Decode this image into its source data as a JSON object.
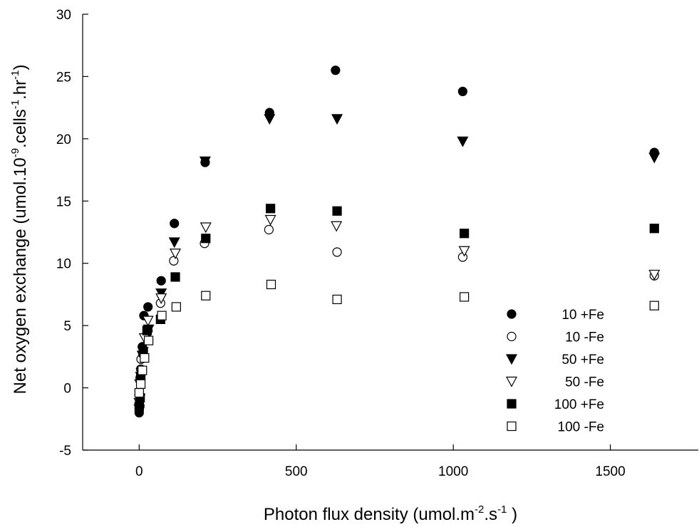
{
  "chart_data": {
    "type": "scatter",
    "xlabel": "Photon flux density (umol.m-2.s-1 )",
    "ylabel": "Net oxygen exchange (umol.10-9.cells-1.hr-1)",
    "xlim": [
      -180,
      1780
    ],
    "ylim": [
      -5,
      30
    ],
    "x_ticks": [
      0,
      500,
      1000,
      1500
    ],
    "y_ticks": [
      -5,
      0,
      5,
      10,
      15,
      20,
      25,
      30
    ],
    "grid": false,
    "legend_position": "bottom-right",
    "series": [
      {
        "name": "10 +Fe",
        "marker": "filled-circle",
        "color": "#000000",
        "points": [
          [
            0,
            -2.0
          ],
          [
            2,
            -1.5
          ],
          [
            5,
            1.5
          ],
          [
            10,
            3.3
          ],
          [
            15,
            5.8
          ],
          [
            28,
            6.5
          ],
          [
            70,
            8.6
          ],
          [
            112,
            13.2
          ],
          [
            210,
            18.1
          ],
          [
            415,
            22.1
          ],
          [
            625,
            25.5
          ],
          [
            1030,
            23.8
          ],
          [
            1640,
            18.9
          ]
        ]
      },
      {
        "name": "10 -Fe",
        "marker": "open-circle",
        "color": "#000000",
        "points": [
          [
            0,
            -1.3
          ],
          [
            3,
            0.8
          ],
          [
            6,
            2.3
          ],
          [
            12,
            2.7
          ],
          [
            22,
            4.2
          ],
          [
            28,
            4.6
          ],
          [
            68,
            6.8
          ],
          [
            110,
            10.2
          ],
          [
            208,
            11.6
          ],
          [
            413,
            12.7
          ],
          [
            630,
            10.9
          ],
          [
            1030,
            10.5
          ],
          [
            1640,
            9.0
          ]
        ]
      },
      {
        "name": "50 +Fe",
        "marker": "filled-triangle-down",
        "color": "#000000",
        "points": [
          [
            0,
            -1.7
          ],
          [
            2,
            -0.9
          ],
          [
            5,
            0.9
          ],
          [
            10,
            2.6
          ],
          [
            20,
            4.0
          ],
          [
            30,
            4.7
          ],
          [
            70,
            7.6
          ],
          [
            112,
            11.7
          ],
          [
            210,
            18.2
          ],
          [
            415,
            21.6
          ],
          [
            630,
            21.6
          ],
          [
            1030,
            19.8
          ],
          [
            1640,
            18.5
          ]
        ]
      },
      {
        "name": "50 -Fe",
        "marker": "open-triangle-down",
        "color": "#000000",
        "points": [
          [
            0,
            -1.2
          ],
          [
            2,
            0.3
          ],
          [
            7,
            1.2
          ],
          [
            12,
            2.9
          ],
          [
            17,
            4.0
          ],
          [
            28,
            5.4
          ],
          [
            70,
            7.2
          ],
          [
            115,
            10.8
          ],
          [
            212,
            12.9
          ],
          [
            418,
            13.5
          ],
          [
            628,
            13.0
          ],
          [
            1035,
            11.0
          ],
          [
            1640,
            9.1
          ]
        ]
      },
      {
        "name": "100 +Fe",
        "marker": "filled-square",
        "color": "#000000",
        "points": [
          [
            0,
            -1.5
          ],
          [
            3,
            -0.8
          ],
          [
            5,
            0.9
          ],
          [
            13,
            2.9
          ],
          [
            25,
            4.6
          ],
          [
            68,
            5.5
          ],
          [
            115,
            8.9
          ],
          [
            212,
            12.0
          ],
          [
            418,
            14.4
          ],
          [
            630,
            14.2
          ],
          [
            1035,
            12.4
          ],
          [
            1640,
            12.8
          ]
        ]
      },
      {
        "name": "100 -Fe",
        "marker": "open-square",
        "color": "#000000",
        "points": [
          [
            0,
            -0.4
          ],
          [
            5,
            0.3
          ],
          [
            10,
            1.4
          ],
          [
            17,
            2.4
          ],
          [
            30,
            3.8
          ],
          [
            72,
            5.8
          ],
          [
            118,
            6.5
          ],
          [
            212,
            7.4
          ],
          [
            420,
            8.3
          ],
          [
            630,
            7.1
          ],
          [
            1035,
            7.3
          ],
          [
            1640,
            6.6
          ]
        ]
      }
    ]
  }
}
